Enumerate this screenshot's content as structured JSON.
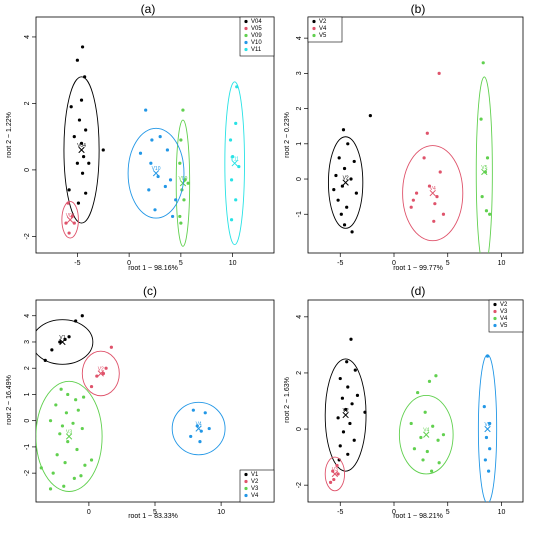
{
  "colors": {
    "black": "#000000",
    "red": "#DF536B",
    "green": "#61D04F",
    "blue": "#2297E6",
    "cyan": "#28E2E5"
  },
  "chart_data": [
    {
      "type": "scatter",
      "title": "(a)",
      "xlabel": "root 1 ~ 98.16%",
      "ylabel": "root 2 ~ 1.22%",
      "xlim": [
        -9,
        14
      ],
      "ylim": [
        -2.5,
        4.6
      ],
      "xticks": [
        -5,
        0,
        5,
        10
      ],
      "yticks": [
        -2,
        0,
        2,
        4
      ],
      "legend_position": "top-right",
      "series": [
        {
          "name": "V04",
          "color": "#000000",
          "centroid": [
            -4.6,
            0.6
          ],
          "ellipse": {
            "rx": 1.7,
            "ry": 2.2
          },
          "points": [
            [
              -4.5,
              3.7
            ],
            [
              -5.0,
              3.3
            ],
            [
              -4.3,
              2.8
            ],
            [
              -4.6,
              2.1
            ],
            [
              -5.6,
              1.9
            ],
            [
              -4.8,
              1.5
            ],
            [
              -4.2,
              1.2
            ],
            [
              -5.3,
              1.0
            ],
            [
              -4.6,
              0.8
            ],
            [
              -4.4,
              0.4
            ],
            [
              -5.0,
              0.2
            ],
            [
              -4.5,
              -0.1
            ],
            [
              -5.8,
              -0.6
            ],
            [
              -4.2,
              -0.7
            ],
            [
              -4.9,
              -1.0
            ],
            [
              -3.9,
              0.2
            ],
            [
              -2.5,
              0.6
            ]
          ]
        },
        {
          "name": "V05",
          "color": "#DF536B",
          "centroid": [
            -5.7,
            -1.5
          ],
          "ellipse": {
            "rx": 0.8,
            "ry": 0.55
          },
          "points": [
            [
              -5.9,
              -1.0
            ],
            [
              -5.5,
              -1.4
            ],
            [
              -6.1,
              -1.6
            ],
            [
              -5.8,
              -1.9
            ],
            [
              -5.3,
              -1.6
            ]
          ]
        },
        {
          "name": "V09",
          "color": "#61D04F",
          "centroid": [
            5.2,
            -0.4
          ],
          "ellipse": {
            "rx": 0.65,
            "ry": 1.9
          },
          "points": [
            [
              5.2,
              1.8
            ],
            [
              5.0,
              0.9
            ],
            [
              4.9,
              0.2
            ],
            [
              5.4,
              -0.3
            ],
            [
              5.1,
              -0.6
            ],
            [
              5.3,
              -0.9
            ],
            [
              4.9,
              -1.4
            ],
            [
              5.0,
              -1.6
            ],
            [
              5.7,
              -0.4
            ]
          ]
        },
        {
          "name": "V10",
          "color": "#2297E6",
          "centroid": [
            2.6,
            -0.1
          ],
          "ellipse": {
            "rx": 2.7,
            "ry": 1.35
          },
          "points": [
            [
              1.6,
              1.8
            ],
            [
              3.0,
              1.0
            ],
            [
              2.2,
              0.9
            ],
            [
              1.1,
              0.5
            ],
            [
              2.1,
              0.2
            ],
            [
              3.7,
              0.6
            ],
            [
              2.8,
              -0.2
            ],
            [
              3.5,
              -0.5
            ],
            [
              1.9,
              -0.6
            ],
            [
              4.0,
              -0.3
            ],
            [
              4.5,
              -0.9
            ],
            [
              4.2,
              -1.4
            ],
            [
              2.5,
              -1.2
            ]
          ]
        },
        {
          "name": "V11",
          "color": "#28E2E5",
          "centroid": [
            10.2,
            0.2
          ],
          "ellipse": {
            "rx": 0.95,
            "ry": 2.45
          },
          "points": [
            [
              10.4,
              2.5
            ],
            [
              10.3,
              1.4
            ],
            [
              9.8,
              0.9
            ],
            [
              10.0,
              0.4
            ],
            [
              10.6,
              0.1
            ],
            [
              9.9,
              -0.3
            ],
            [
              10.3,
              -0.9
            ],
            [
              9.9,
              -1.5
            ]
          ]
        }
      ]
    },
    {
      "type": "scatter",
      "title": "(b)",
      "xlabel": "root 1 ~ 99.77%",
      "ylabel": "root 2 ~ 0.23%",
      "xlim": [
        -8,
        12
      ],
      "ylim": [
        -2.1,
        4.6
      ],
      "xticks": [
        -5,
        0,
        5,
        10
      ],
      "yticks": [
        -1,
        0,
        1,
        2,
        3,
        4
      ],
      "legend_position": "top-left",
      "series": [
        {
          "name": "V2",
          "color": "#000000",
          "centroid": [
            -4.5,
            -0.1
          ],
          "ellipse": {
            "rx": 1.6,
            "ry": 1.3
          },
          "points": [
            [
              -4.7,
              1.4
            ],
            [
              -4.3,
              1.0
            ],
            [
              -5.1,
              0.6
            ],
            [
              -3.7,
              0.5
            ],
            [
              -4.6,
              0.3
            ],
            [
              -5.4,
              0.1
            ],
            [
              -4.0,
              0.0
            ],
            [
              -4.8,
              -0.2
            ],
            [
              -3.5,
              -0.4
            ],
            [
              -5.2,
              -0.6
            ],
            [
              -4.4,
              -0.8
            ],
            [
              -4.9,
              -1.0
            ],
            [
              -3.9,
              -1.5
            ],
            [
              -4.6,
              -1.3
            ],
            [
              -2.2,
              1.8
            ],
            [
              -5.6,
              -0.3
            ]
          ]
        },
        {
          "name": "V4",
          "color": "#DF536B",
          "centroid": [
            3.6,
            -0.4
          ],
          "ellipse": {
            "rx": 2.8,
            "ry": 1.35
          },
          "points": [
            [
              4.2,
              3.0
            ],
            [
              3.1,
              1.3
            ],
            [
              2.8,
              0.6
            ],
            [
              4.3,
              0.2
            ],
            [
              3.3,
              -0.2
            ],
            [
              2.1,
              -0.4
            ],
            [
              4.0,
              -0.5
            ],
            [
              3.8,
              -0.7
            ],
            [
              1.6,
              -0.8
            ],
            [
              4.6,
              -1.0
            ],
            [
              3.7,
              -1.2
            ],
            [
              1.8,
              -0.6
            ]
          ]
        },
        {
          "name": "V5",
          "color": "#61D04F",
          "centroid": [
            8.4,
            0.2
          ],
          "ellipse": {
            "rx": 0.75,
            "ry": 2.7
          },
          "points": [
            [
              8.3,
              3.3
            ],
            [
              8.1,
              1.7
            ],
            [
              8.7,
              0.6
            ],
            [
              8.5,
              0.2
            ],
            [
              8.2,
              -0.5
            ],
            [
              8.6,
              -0.9
            ],
            [
              8.9,
              -1.0
            ]
          ]
        }
      ]
    },
    {
      "type": "scatter",
      "title": "(c)",
      "xlabel": "root 1 ~ 83.33%",
      "ylabel": "root 2 ~ 16.49%",
      "xlim": [
        -4,
        14
      ],
      "ylim": [
        -3.1,
        4.6
      ],
      "xticks": [
        0,
        5,
        10
      ],
      "yticks": [
        -2,
        -1,
        0,
        1,
        2,
        3,
        4
      ],
      "legend_position": "bottom-right",
      "series": [
        {
          "name": "V1",
          "color": "#000000",
          "centroid": [
            -2.0,
            3.0
          ],
          "ellipse": {
            "rx": 2.3,
            "ry": 0.85
          },
          "points": [
            [
              -0.5,
              4.0
            ],
            [
              -1.0,
              3.8
            ],
            [
              -1.8,
              3.1
            ],
            [
              -2.2,
              3.0
            ],
            [
              -2.8,
              2.7
            ],
            [
              -3.3,
              2.3
            ],
            [
              -1.5,
              3.2
            ]
          ]
        },
        {
          "name": "V2",
          "color": "#DF536B",
          "centroid": [
            0.9,
            1.8
          ],
          "ellipse": {
            "rx": 1.4,
            "ry": 0.85
          },
          "points": [
            [
              1.7,
              2.8
            ],
            [
              1.1,
              1.8
            ],
            [
              0.6,
              1.7
            ],
            [
              0.2,
              1.3
            ],
            [
              1.3,
              2.0
            ]
          ]
        },
        {
          "name": "V3",
          "color": "#61D04F",
          "centroid": [
            -1.5,
            -0.6
          ],
          "ellipse": {
            "rx": 2.5,
            "ry": 2.1
          },
          "points": [
            [
              -2.1,
              1.2
            ],
            [
              -1.6,
              1.0
            ],
            [
              -1.0,
              0.8
            ],
            [
              -2.5,
              0.6
            ],
            [
              -0.8,
              0.4
            ],
            [
              -1.7,
              0.3
            ],
            [
              -2.9,
              0.0
            ],
            [
              -1.2,
              -0.1
            ],
            [
              -0.5,
              -0.3
            ],
            [
              -2.2,
              -0.5
            ],
            [
              -1.6,
              -0.8
            ],
            [
              -3.6,
              -1.8
            ],
            [
              -0.9,
              -1.1
            ],
            [
              -2.4,
              -1.3
            ],
            [
              -1.8,
              -1.6
            ],
            [
              -0.3,
              -1.7
            ],
            [
              -2.7,
              -2.0
            ],
            [
              -1.1,
              -2.2
            ],
            [
              -2.9,
              -2.6
            ],
            [
              -0.6,
              -2.1
            ],
            [
              -1.9,
              -2.5
            ],
            [
              0.2,
              -1.5
            ],
            [
              -0.4,
              0.9
            ],
            [
              -2.0,
              -0.2
            ]
          ]
        },
        {
          "name": "V4",
          "color": "#2297E6",
          "centroid": [
            8.3,
            -0.3
          ],
          "ellipse": {
            "rx": 2.0,
            "ry": 1.0
          },
          "points": [
            [
              7.9,
              0.4
            ],
            [
              8.8,
              0.3
            ],
            [
              8.2,
              -0.2
            ],
            [
              8.5,
              -0.4
            ],
            [
              9.1,
              -0.3
            ],
            [
              7.7,
              -0.6
            ],
            [
              8.4,
              -0.8
            ]
          ]
        }
      ]
    },
    {
      "type": "scatter",
      "title": "(d)",
      "xlabel": "root 1 ~ 98.21%",
      "ylabel": "root 2 ~ 1.63%",
      "xlim": [
        -8,
        12
      ],
      "ylim": [
        -2.6,
        4.6
      ],
      "xticks": [
        -5,
        0,
        5,
        10
      ],
      "yticks": [
        -2,
        0,
        2,
        4
      ],
      "legend_position": "top-right",
      "series": [
        {
          "name": "V2",
          "color": "#000000",
          "centroid": [
            -4.5,
            0.5
          ],
          "ellipse": {
            "rx": 1.9,
            "ry": 2.0
          },
          "points": [
            [
              -4.0,
              3.2
            ],
            [
              -4.4,
              2.4
            ],
            [
              -3.6,
              2.1
            ],
            [
              -5.0,
              1.8
            ],
            [
              -4.3,
              1.5
            ],
            [
              -4.8,
              1.1
            ],
            [
              -3.9,
              0.9
            ],
            [
              -4.5,
              0.7
            ],
            [
              -5.2,
              0.4
            ],
            [
              -4.1,
              0.2
            ],
            [
              -4.7,
              -0.1
            ],
            [
              -3.7,
              -0.4
            ],
            [
              -5.0,
              -0.6
            ],
            [
              -4.3,
              -0.9
            ],
            [
              -5.1,
              -1.1
            ],
            [
              -2.7,
              0.6
            ],
            [
              -3.4,
              1.2
            ]
          ]
        },
        {
          "name": "V3",
          "color": "#DF536B",
          "centroid": [
            -5.5,
            -1.6
          ],
          "ellipse": {
            "rx": 0.9,
            "ry": 0.6
          },
          "points": [
            [
              -5.3,
              -1.3
            ],
            [
              -5.7,
              -1.5
            ],
            [
              -5.6,
              -1.8
            ],
            [
              -5.2,
              -1.6
            ],
            [
              -5.9,
              -1.9
            ]
          ]
        },
        {
          "name": "V4",
          "color": "#61D04F",
          "centroid": [
            3.0,
            -0.2
          ],
          "ellipse": {
            "rx": 2.5,
            "ry": 1.4
          },
          "points": [
            [
              3.9,
              1.9
            ],
            [
              3.3,
              1.7
            ],
            [
              2.2,
              1.3
            ],
            [
              2.9,
              0.6
            ],
            [
              1.6,
              0.2
            ],
            [
              3.6,
              0.1
            ],
            [
              2.5,
              -0.3
            ],
            [
              4.1,
              -0.4
            ],
            [
              1.9,
              -0.7
            ],
            [
              3.1,
              -0.8
            ],
            [
              4.2,
              -1.2
            ],
            [
              3.5,
              -1.5
            ],
            [
              2.7,
              -1.1
            ],
            [
              4.6,
              -0.2
            ]
          ]
        },
        {
          "name": "V5",
          "color": "#2297E6",
          "centroid": [
            8.7,
            0.0
          ],
          "ellipse": {
            "rx": 0.85,
            "ry": 2.65
          },
          "points": [
            [
              8.7,
              2.6
            ],
            [
              8.4,
              0.8
            ],
            [
              8.9,
              0.2
            ],
            [
              8.6,
              -0.3
            ],
            [
              8.9,
              -0.7
            ],
            [
              8.5,
              -1.1
            ],
            [
              8.8,
              -1.5
            ]
          ]
        }
      ]
    }
  ]
}
